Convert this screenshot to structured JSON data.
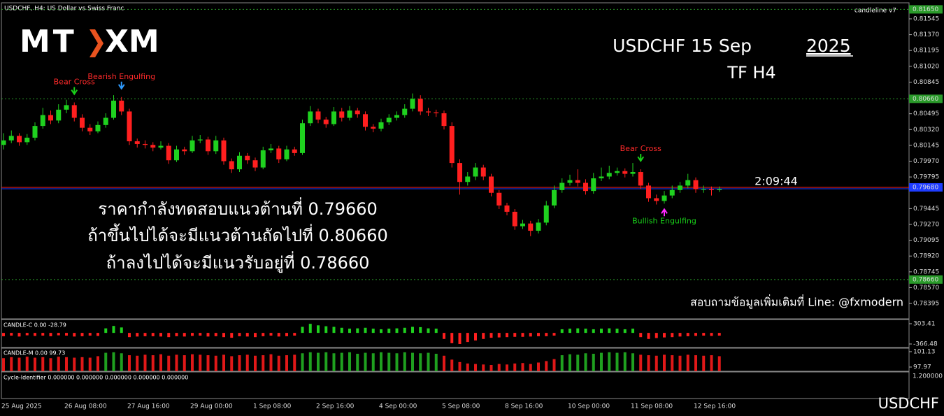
{
  "chart_data": [
    {
      "type": "candlestick",
      "header": "USDCHF, H4:  US Dollar vs Swiss Franc",
      "indicator": "candleline v7",
      "logo": [
        "MT",
        "XM"
      ],
      "title": "USDCHF  15 Sep",
      "title_year": "2025",
      "subtitle": "TF H4",
      "countdown": "2:09:44",
      "notes": [
        "ราคากำลังทดสอบแนวต้านที่ 0.79660",
        "ถ้าขึ้นไปได้จะมีแนวต้านถัดไปที่ 0.80660",
        "ถ้าลงไปได้จะมีแนวรับอยู่ที่ 0.78660"
      ],
      "contact": "สอบถามข้อมูลเพิ่มเติมที่ Line: @fxmodern",
      "symbol": "USDCHF",
      "signals": [
        {
          "text": "Bear Cross",
          "color": "#ff2a2a",
          "arrow": "#19d119"
        },
        {
          "text": "Bearish Engulfing",
          "color": "#ff2a2a",
          "arrow": "#2f9bff"
        },
        {
          "text": "Bear Cross",
          "color": "#ff2a2a",
          "arrow": "#19d119"
        },
        {
          "text": "Bullish Engulfing",
          "color": "#19d119",
          "arrow": "#ff2aff"
        }
      ],
      "up_color": "#1fd11f",
      "down_color": "#ff1f1f",
      "categories": [
        "25 Aug 2025",
        null,
        null,
        null,
        null,
        null,
        null,
        null,
        "26 Aug 08:00",
        null,
        null,
        null,
        null,
        null,
        null,
        null,
        "27 Aug 16:00",
        null,
        null,
        null,
        null,
        null,
        null,
        null,
        "29 Aug 00:00",
        null,
        null,
        null,
        null,
        null,
        null,
        null,
        "1 Sep 08:00",
        null,
        null,
        null,
        null,
        null,
        null,
        null,
        "2 Sep 16:00",
        null,
        null,
        null,
        null,
        null,
        null,
        null,
        "4 Sep 00:00",
        null,
        null,
        null,
        null,
        null,
        null,
        null,
        "5 Sep 08:00",
        null,
        null,
        null,
        null,
        null,
        null,
        null,
        "8 Sep 16:00",
        null,
        null,
        null,
        null,
        null,
        null,
        null,
        "10 Sep 00:00",
        null,
        null,
        null,
        null,
        null,
        null,
        null,
        "11 Sep 08:00",
        null,
        null,
        null,
        null,
        null,
        null,
        null,
        "12 Sep 16:00",
        null,
        null,
        null
      ],
      "candles": [
        [
          0.8015,
          0.8028,
          0.801,
          0.802
        ],
        [
          0.802,
          0.8031,
          0.8017,
          0.8025
        ],
        [
          0.8025,
          0.8028,
          0.8014,
          0.8018
        ],
        [
          0.8018,
          0.8027,
          0.8015,
          0.8023
        ],
        [
          0.8023,
          0.804,
          0.802,
          0.8036
        ],
        [
          0.8036,
          0.8056,
          0.8033,
          0.8048
        ],
        [
          0.8048,
          0.8053,
          0.8038,
          0.8042
        ],
        [
          0.8042,
          0.806,
          0.8039,
          0.8054
        ],
        [
          0.8054,
          0.8065,
          0.805,
          0.8059
        ],
        [
          0.8059,
          0.8062,
          0.8041,
          0.8045
        ],
        [
          0.8045,
          0.8049,
          0.803,
          0.8034
        ],
        [
          0.8034,
          0.8038,
          0.8026,
          0.803
        ],
        [
          0.803,
          0.8041,
          0.8028,
          0.8037
        ],
        [
          0.8037,
          0.805,
          0.8034,
          0.8045
        ],
        [
          0.8045,
          0.807,
          0.8043,
          0.8064
        ],
        [
          0.8064,
          0.8068,
          0.8048,
          0.8052
        ],
        [
          0.8052,
          0.8055,
          0.8015,
          0.8019
        ],
        [
          0.8019,
          0.8022,
          0.8012,
          0.8016
        ],
        [
          0.8016,
          0.802,
          0.8011,
          0.8015
        ],
        [
          0.8015,
          0.8018,
          0.8008,
          0.8012
        ],
        [
          0.8012,
          0.8019,
          0.801,
          0.8014
        ],
        [
          0.8014,
          0.8017,
          0.7994,
          0.7998
        ],
        [
          0.7998,
          0.8014,
          0.7996,
          0.801
        ],
        [
          0.801,
          0.8013,
          0.8004,
          0.8008
        ],
        [
          0.8008,
          0.8025,
          0.8006,
          0.802
        ],
        [
          0.802,
          0.8026,
          0.8017,
          0.8021
        ],
        [
          0.8021,
          0.8024,
          0.8004,
          0.8008
        ],
        [
          0.8008,
          0.8025,
          0.8005,
          0.802
        ],
        [
          0.802,
          0.8023,
          0.7993,
          0.7997
        ],
        [
          0.7997,
          0.8,
          0.7984,
          0.7988
        ],
        [
          0.7988,
          0.8007,
          0.7985,
          0.8003
        ],
        [
          0.8003,
          0.8006,
          0.7994,
          0.7998
        ],
        [
          0.7998,
          0.8001,
          0.7986,
          0.799
        ],
        [
          0.799,
          0.8013,
          0.7988,
          0.8009
        ],
        [
          0.8009,
          0.8016,
          0.8006,
          0.8011
        ],
        [
          0.8011,
          0.8014,
          0.7995,
          0.7999
        ],
        [
          0.7999,
          0.8014,
          0.7997,
          0.801
        ],
        [
          0.801,
          0.8013,
          0.8003,
          0.8006
        ],
        [
          0.8006,
          0.8043,
          0.8004,
          0.8039
        ],
        [
          0.8039,
          0.8058,
          0.8036,
          0.8052
        ],
        [
          0.8052,
          0.8055,
          0.8039,
          0.8043
        ],
        [
          0.8043,
          0.8046,
          0.8034,
          0.8038
        ],
        [
          0.8038,
          0.8057,
          0.8036,
          0.8052
        ],
        [
          0.8052,
          0.8056,
          0.8041,
          0.8045
        ],
        [
          0.8045,
          0.8058,
          0.8042,
          0.8053
        ],
        [
          0.8053,
          0.8056,
          0.8045,
          0.8049
        ],
        [
          0.8049,
          0.8052,
          0.8031,
          0.8035
        ],
        [
          0.8035,
          0.8038,
          0.8029,
          0.8033
        ],
        [
          0.8033,
          0.8044,
          0.803,
          0.804
        ],
        [
          0.804,
          0.8049,
          0.8037,
          0.8045
        ],
        [
          0.8045,
          0.8052,
          0.8042,
          0.8048
        ],
        [
          0.8048,
          0.806,
          0.8045,
          0.8055
        ],
        [
          0.8055,
          0.8072,
          0.8052,
          0.8066
        ],
        [
          0.8066,
          0.807,
          0.8048,
          0.8052
        ],
        [
          0.8052,
          0.8056,
          0.8047,
          0.8051
        ],
        [
          0.8051,
          0.8054,
          0.8046,
          0.805
        ],
        [
          0.805,
          0.8053,
          0.8032,
          0.8036
        ],
        [
          0.8036,
          0.804,
          0.799,
          0.7995
        ],
        [
          0.7995,
          0.7999,
          0.796,
          0.7974
        ],
        [
          0.7974,
          0.7985,
          0.797,
          0.798
        ],
        [
          0.798,
          0.7995,
          0.7976,
          0.799
        ],
        [
          0.799,
          0.7993,
          0.7976,
          0.798
        ],
        [
          0.798,
          0.7983,
          0.7958,
          0.7962
        ],
        [
          0.7962,
          0.7965,
          0.7944,
          0.7948
        ],
        [
          0.7948,
          0.7951,
          0.7937,
          0.7941
        ],
        [
          0.7941,
          0.7944,
          0.7921,
          0.7925
        ],
        [
          0.7925,
          0.7932,
          0.7922,
          0.7928
        ],
        [
          0.7928,
          0.7931,
          0.7914,
          0.792
        ],
        [
          0.792,
          0.7933,
          0.7917,
          0.7929
        ],
        [
          0.7929,
          0.7953,
          0.7926,
          0.7948
        ],
        [
          0.7948,
          0.797,
          0.7945,
          0.7965
        ],
        [
          0.7965,
          0.7978,
          0.7962,
          0.7973
        ],
        [
          0.7973,
          0.7982,
          0.797,
          0.7976
        ],
        [
          0.7976,
          0.7988,
          0.7969,
          0.7973
        ],
        [
          0.7973,
          0.7977,
          0.796,
          0.7964
        ],
        [
          0.7964,
          0.7984,
          0.7961,
          0.7978
        ],
        [
          0.7978,
          0.799,
          0.7975,
          0.798
        ],
        [
          0.798,
          0.7992,
          0.7977,
          0.7984
        ],
        [
          0.7984,
          0.799,
          0.7981,
          0.7986
        ],
        [
          0.7986,
          0.7989,
          0.7979,
          0.7983
        ],
        [
          0.7983,
          0.7995,
          0.798,
          0.7985
        ],
        [
          0.7985,
          0.7988,
          0.7966,
          0.797
        ],
        [
          0.797,
          0.7973,
          0.7952,
          0.7956
        ],
        [
          0.7956,
          0.796,
          0.7949,
          0.7953
        ],
        [
          0.7953,
          0.7964,
          0.795,
          0.7959
        ],
        [
          0.7959,
          0.797,
          0.7956,
          0.7965
        ],
        [
          0.7965,
          0.7974,
          0.7962,
          0.797
        ],
        [
          0.797,
          0.7983,
          0.7967,
          0.7976
        ],
        [
          0.7976,
          0.7979,
          0.7962,
          0.7966
        ],
        [
          0.7966,
          0.797,
          0.7962,
          0.7966
        ],
        [
          0.7966,
          0.7969,
          0.7959,
          0.7965
        ],
        [
          0.7965,
          0.7969,
          0.7963,
          0.7966
        ]
      ],
      "ylim": [
        0.78233,
        0.81715
      ],
      "yticks": [
        0.81545,
        {
          "value": 0.8137,
          "label": "0.81370"
        },
        0.81195,
        {
          "value": 0.8102,
          "label": "0.81020"
        },
        0.80845,
        0.80495,
        {
          "value": 0.8032,
          "label": "0.80320"
        },
        0.80145,
        {
          "value": 0.7997,
          "label": "0.79970"
        },
        0.79795,
        0.79445,
        {
          "value": 0.7927,
          "label": "0.79270"
        },
        0.79095,
        {
          "value": 0.7892,
          "label": "0.78920"
        },
        0.78745,
        {
          "value": 0.7857,
          "label": "0.78570"
        },
        0.78395
      ],
      "levels": [
        {
          "value": 0.8165,
          "label": "0.81650",
          "color": "#2a9a2a"
        },
        {
          "value": 0.8066,
          "label": "0.80660",
          "color": "#2a9a2a"
        },
        {
          "value": 0.7866,
          "label": "0.78660",
          "color": "#2a9a2a"
        }
      ],
      "price": {
        "value": 0.7968,
        "label": "0.79680",
        "color": "#ff2020",
        "box": "#1e3cff"
      }
    },
    {
      "type": "bar",
      "title": "CANDLE-C 0.00 -28.79",
      "values": [
        -110,
        -90,
        -120,
        -80,
        -100,
        -90,
        -110,
        -80,
        -90,
        -120,
        -110,
        -90,
        -100,
        150,
        230,
        180,
        -140,
        -120,
        -110,
        -110,
        -120,
        -140,
        -110,
        -120,
        -100,
        -90,
        -120,
        -110,
        -140,
        -160,
        -110,
        -120,
        -140,
        -110,
        -90,
        -120,
        -110,
        -90,
        200,
        300,
        250,
        220,
        200,
        170,
        140,
        150,
        170,
        140,
        120,
        140,
        150,
        170,
        200,
        190,
        150,
        140,
        -200,
        -340,
        -366,
        -300,
        -250,
        -200,
        -160,
        -150,
        -140,
        -130,
        -130,
        -120,
        -110,
        -110,
        -90,
        120,
        140,
        150,
        140,
        120,
        140,
        150,
        140,
        120,
        140,
        -140,
        -200,
        -170,
        -150,
        -140,
        -120,
        -110,
        -100,
        -90,
        -100,
        -90
      ],
      "up_color": "#1fd11f",
      "down_color": "#ff1f1f",
      "ylim": [
        -458.9,
        418.9
      ],
      "yticks": [
        303.41,
        -366.48
      ]
    },
    {
      "type": "bar",
      "title": "CANDLE-M 0.00 99.73",
      "values": [
        99.8,
        100.0,
        99.9,
        100.1,
        99.9,
        100.0,
        99.8,
        100.1,
        100.0,
        99.9,
        100.0,
        99.9,
        100.2,
        100.9,
        101.0,
        100.8,
        100.4,
        100.3,
        100.5,
        100.4,
        100.6,
        100.3,
        100.5,
        100.4,
        100.6,
        100.5,
        100.4,
        100.3,
        100.5,
        100.2,
        100.4,
        100.5,
        100.3,
        100.4,
        100.6,
        100.3,
        100.4,
        100.5,
        100.8,
        101.0,
        100.9,
        101.0,
        100.8,
        100.9,
        101.0,
        100.7,
        100.9,
        100.8,
        101.0,
        100.9,
        100.8,
        101.0,
        100.9,
        100.8,
        100.9,
        100.7,
        100.3,
        99.5,
        99.0,
        98.7,
        98.6,
        98.5,
        98.4,
        98.6,
        98.5,
        98.7,
        98.8,
        98.6,
        98.9,
        99.2,
        99.6,
        100.4,
        100.6,
        100.5,
        100.8,
        100.7,
        100.9,
        101.0,
        100.9,
        101.0,
        100.8,
        100.5,
        100.4,
        100.3,
        100.5,
        100.4,
        100.3,
        100.5,
        100.4,
        100.3,
        100.4,
        100.2
      ],
      "up_color": "#1fa01f",
      "down_color": "#e01818",
      "ylim": [
        97.11,
        101.7
      ],
      "yticks": [
        101.13,
        97.97
      ]
    },
    {
      "type": "panel",
      "title": "Cycle-Identifier 0.000000 0.000000 0.000000 0.000000 0.000000",
      "yticks": [
        {
          "value": 1.2,
          "label": "1.200000"
        }
      ]
    }
  ]
}
